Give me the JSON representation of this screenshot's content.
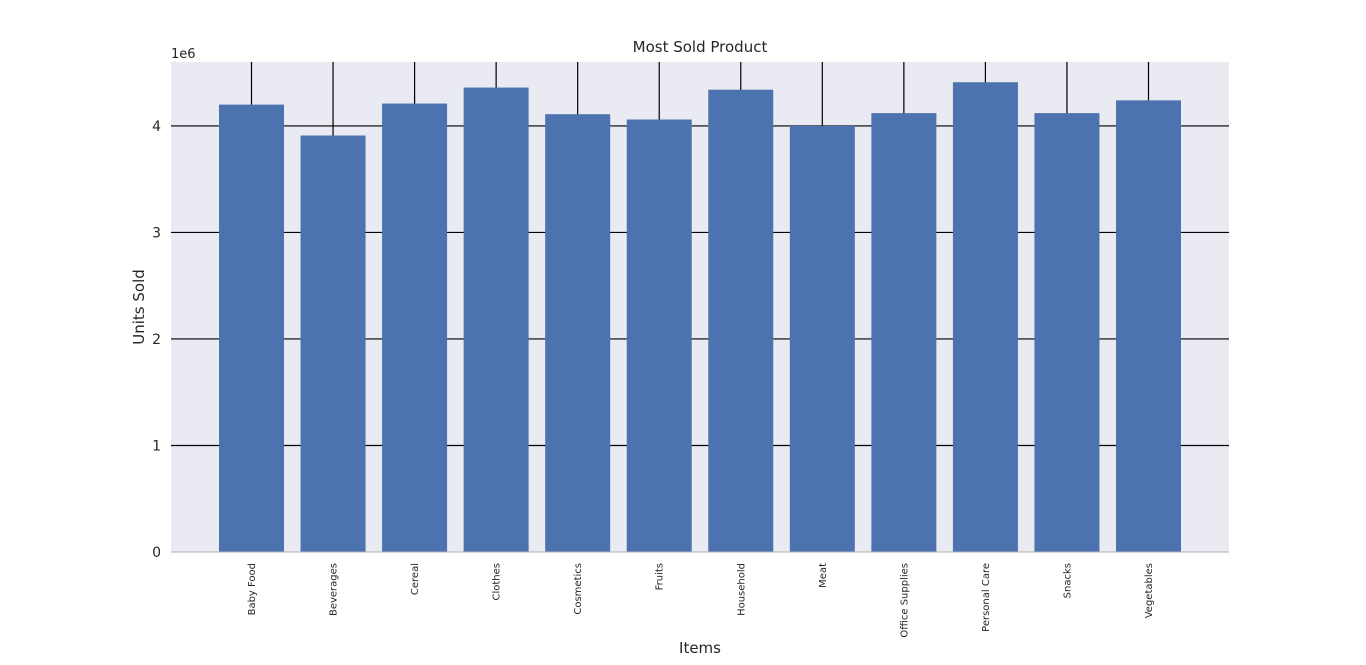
{
  "chart_data": {
    "type": "bar",
    "title": "Most Sold Product",
    "xlabel": "Items",
    "ylabel": "Units Sold",
    "y_offset_label": "1e6",
    "y_scale": 1000000,
    "ylim": [
      0,
      4600000
    ],
    "yticks": [
      0,
      1000000,
      2000000,
      3000000,
      4000000
    ],
    "ytick_labels": [
      "0",
      "1",
      "2",
      "3",
      "4"
    ],
    "categories": [
      "Baby Food",
      "Beverages",
      "Cereal",
      "Clothes",
      "Cosmetics",
      "Fruits",
      "Household",
      "Meat",
      "Office Supplies",
      "Personal Care",
      "Snacks",
      "Vegetables"
    ],
    "values": [
      4200000,
      3910000,
      4210000,
      4360000,
      4110000,
      4060000,
      4340000,
      4000000,
      4120000,
      4410000,
      4120000,
      4240000
    ],
    "grid": true,
    "legend": "none",
    "colors": {
      "bar": "#4c72b0",
      "plot_background": "#eaeaf2",
      "grid": "#000000",
      "text": "#262626"
    }
  }
}
